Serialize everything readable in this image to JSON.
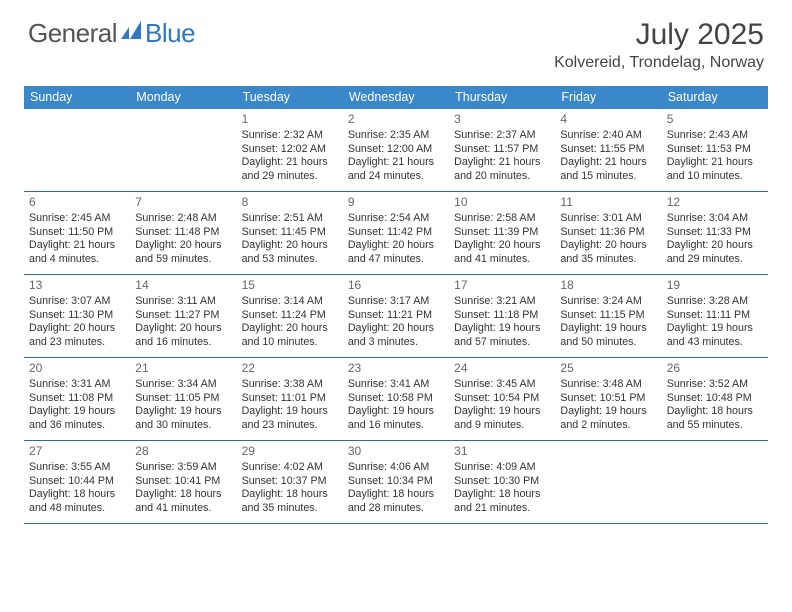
{
  "brand": {
    "text1": "General",
    "text2": "Blue",
    "text1_color": "#555555",
    "text2_color": "#2f78c2",
    "mark_color": "#2f78c2"
  },
  "title": "July 2025",
  "location": "Kolvereid, Trondelag, Norway",
  "colors": {
    "header_bg": "#3a87c9",
    "header_text": "#ffffff",
    "rule": "#2f6aa0",
    "body_text": "#333333",
    "daynum_text": "#666666",
    "background": "#ffffff"
  },
  "typography": {
    "title_fontsize_pt": 22,
    "location_fontsize_pt": 12,
    "dayheader_fontsize_pt": 9.5,
    "daynum_fontsize_pt": 9,
    "body_fontsize_pt": 8
  },
  "day_labels": [
    "Sunday",
    "Monday",
    "Tuesday",
    "Wednesday",
    "Thursday",
    "Friday",
    "Saturday"
  ],
  "layout": {
    "cols": 7,
    "rows": 5,
    "leading_blanks": 2,
    "aspect": "792x612"
  },
  "days": [
    {
      "n": "1",
      "sunrise": "2:32 AM",
      "sunset": "12:02 AM",
      "daylight": "21 hours and 29 minutes."
    },
    {
      "n": "2",
      "sunrise": "2:35 AM",
      "sunset": "12:00 AM",
      "daylight": "21 hours and 24 minutes."
    },
    {
      "n": "3",
      "sunrise": "2:37 AM",
      "sunset": "11:57 PM",
      "daylight": "21 hours and 20 minutes."
    },
    {
      "n": "4",
      "sunrise": "2:40 AM",
      "sunset": "11:55 PM",
      "daylight": "21 hours and 15 minutes."
    },
    {
      "n": "5",
      "sunrise": "2:43 AM",
      "sunset": "11:53 PM",
      "daylight": "21 hours and 10 minutes."
    },
    {
      "n": "6",
      "sunrise": "2:45 AM",
      "sunset": "11:50 PM",
      "daylight": "21 hours and 4 minutes."
    },
    {
      "n": "7",
      "sunrise": "2:48 AM",
      "sunset": "11:48 PM",
      "daylight": "20 hours and 59 minutes."
    },
    {
      "n": "8",
      "sunrise": "2:51 AM",
      "sunset": "11:45 PM",
      "daylight": "20 hours and 53 minutes."
    },
    {
      "n": "9",
      "sunrise": "2:54 AM",
      "sunset": "11:42 PM",
      "daylight": "20 hours and 47 minutes."
    },
    {
      "n": "10",
      "sunrise": "2:58 AM",
      "sunset": "11:39 PM",
      "daylight": "20 hours and 41 minutes."
    },
    {
      "n": "11",
      "sunrise": "3:01 AM",
      "sunset": "11:36 PM",
      "daylight": "20 hours and 35 minutes."
    },
    {
      "n": "12",
      "sunrise": "3:04 AM",
      "sunset": "11:33 PM",
      "daylight": "20 hours and 29 minutes."
    },
    {
      "n": "13",
      "sunrise": "3:07 AM",
      "sunset": "11:30 PM",
      "daylight": "20 hours and 23 minutes."
    },
    {
      "n": "14",
      "sunrise": "3:11 AM",
      "sunset": "11:27 PM",
      "daylight": "20 hours and 16 minutes."
    },
    {
      "n": "15",
      "sunrise": "3:14 AM",
      "sunset": "11:24 PM",
      "daylight": "20 hours and 10 minutes."
    },
    {
      "n": "16",
      "sunrise": "3:17 AM",
      "sunset": "11:21 PM",
      "daylight": "20 hours and 3 minutes."
    },
    {
      "n": "17",
      "sunrise": "3:21 AM",
      "sunset": "11:18 PM",
      "daylight": "19 hours and 57 minutes."
    },
    {
      "n": "18",
      "sunrise": "3:24 AM",
      "sunset": "11:15 PM",
      "daylight": "19 hours and 50 minutes."
    },
    {
      "n": "19",
      "sunrise": "3:28 AM",
      "sunset": "11:11 PM",
      "daylight": "19 hours and 43 minutes."
    },
    {
      "n": "20",
      "sunrise": "3:31 AM",
      "sunset": "11:08 PM",
      "daylight": "19 hours and 36 minutes."
    },
    {
      "n": "21",
      "sunrise": "3:34 AM",
      "sunset": "11:05 PM",
      "daylight": "19 hours and 30 minutes."
    },
    {
      "n": "22",
      "sunrise": "3:38 AM",
      "sunset": "11:01 PM",
      "daylight": "19 hours and 23 minutes."
    },
    {
      "n": "23",
      "sunrise": "3:41 AM",
      "sunset": "10:58 PM",
      "daylight": "19 hours and 16 minutes."
    },
    {
      "n": "24",
      "sunrise": "3:45 AM",
      "sunset": "10:54 PM",
      "daylight": "19 hours and 9 minutes."
    },
    {
      "n": "25",
      "sunrise": "3:48 AM",
      "sunset": "10:51 PM",
      "daylight": "19 hours and 2 minutes."
    },
    {
      "n": "26",
      "sunrise": "3:52 AM",
      "sunset": "10:48 PM",
      "daylight": "18 hours and 55 minutes."
    },
    {
      "n": "27",
      "sunrise": "3:55 AM",
      "sunset": "10:44 PM",
      "daylight": "18 hours and 48 minutes."
    },
    {
      "n": "28",
      "sunrise": "3:59 AM",
      "sunset": "10:41 PM",
      "daylight": "18 hours and 41 minutes."
    },
    {
      "n": "29",
      "sunrise": "4:02 AM",
      "sunset": "10:37 PM",
      "daylight": "18 hours and 35 minutes."
    },
    {
      "n": "30",
      "sunrise": "4:06 AM",
      "sunset": "10:34 PM",
      "daylight": "18 hours and 28 minutes."
    },
    {
      "n": "31",
      "sunrise": "4:09 AM",
      "sunset": "10:30 PM",
      "daylight": "18 hours and 21 minutes."
    }
  ],
  "labels": {
    "sunrise_prefix": "Sunrise: ",
    "sunset_prefix": "Sunset: ",
    "daylight_prefix": "Daylight: "
  }
}
